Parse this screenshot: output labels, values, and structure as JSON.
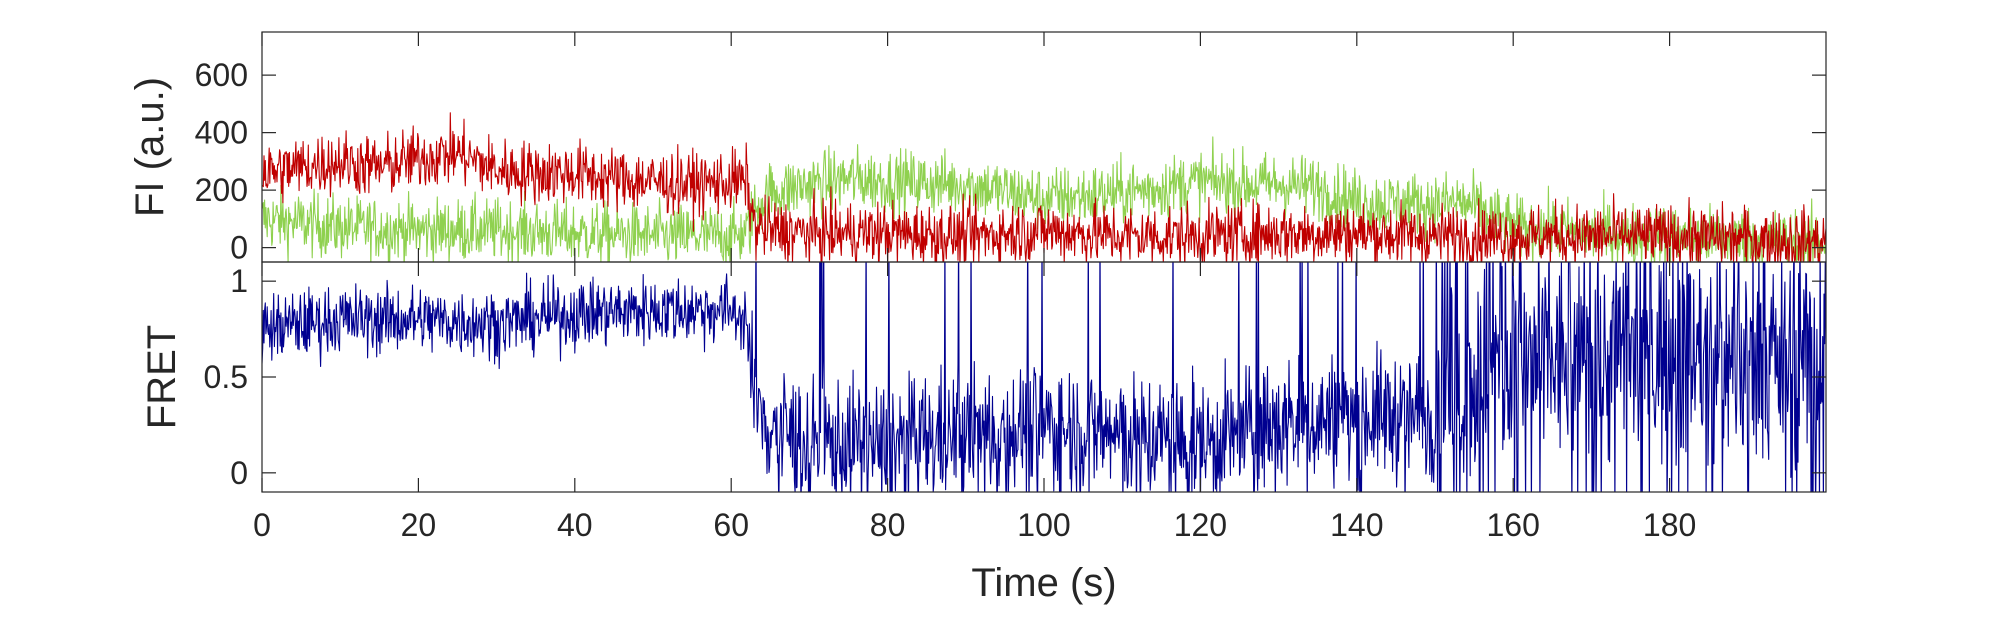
{
  "chart_data": [
    {
      "type": "line",
      "panel": "top",
      "ylabel": "FI (a.u.)",
      "xlabel": "",
      "xlim": [
        0,
        200
      ],
      "ylim": [
        -50,
        750
      ],
      "yticks": [
        0,
        200,
        400,
        600
      ],
      "ytick_labels": [
        "0",
        "200",
        "400",
        "600"
      ],
      "grid": false,
      "legend": "none",
      "series": [
        {
          "color": "#8fd14f",
          "x": [
            0,
            10,
            20,
            30,
            40,
            50,
            60,
            62,
            63,
            65,
            70,
            75,
            80,
            90,
            100,
            110,
            115,
            120,
            125,
            130,
            135,
            140,
            150,
            153,
            155,
            160,
            170,
            180,
            190,
            200
          ],
          "y": [
            100,
            70,
            60,
            60,
            50,
            40,
            40,
            50,
            130,
            190,
            220,
            240,
            230,
            220,
            170,
            190,
            210,
            230,
            220,
            220,
            210,
            160,
            150,
            160,
            140,
            70,
            50,
            40,
            30,
            20
          ]
        },
        {
          "color": "#c00000",
          "x": [
            0,
            5,
            10,
            15,
            20,
            25,
            30,
            35,
            40,
            45,
            50,
            55,
            60,
            62,
            63,
            65,
            70,
            80,
            90,
            100,
            110,
            120,
            130,
            140,
            150,
            160,
            170,
            180,
            190,
            200
          ],
          "y": [
            260,
            280,
            300,
            280,
            310,
            330,
            270,
            260,
            260,
            240,
            230,
            220,
            230,
            230,
            70,
            60,
            50,
            50,
            40,
            60,
            40,
            40,
            50,
            50,
            40,
            40,
            40,
            40,
            30,
            20
          ]
        }
      ]
    },
    {
      "type": "line",
      "panel": "bottom",
      "ylabel": "FRET",
      "xlabel": "Time (s)",
      "xlim": [
        0,
        200
      ],
      "ylim": [
        -0.1,
        1.1
      ],
      "yticks": [
        0,
        0.5,
        1
      ],
      "ytick_labels": [
        "0",
        "0.5",
        "1"
      ],
      "xticks": [
        0,
        20,
        40,
        60,
        80,
        100,
        120,
        140,
        160,
        180
      ],
      "xtick_labels": [
        "0",
        "20",
        "40",
        "60",
        "80",
        "100",
        "120",
        "140",
        "160",
        "180"
      ],
      "grid": false,
      "legend": "none",
      "series": [
        {
          "color": "#000090",
          "x": [
            0,
            10,
            20,
            30,
            40,
            50,
            60,
            62,
            63,
            65,
            70,
            80,
            90,
            100,
            110,
            120,
            130,
            140,
            150,
            155,
            160,
            170,
            180,
            190,
            200
          ],
          "y": [
            0.75,
            0.8,
            0.8,
            0.78,
            0.83,
            0.85,
            0.85,
            0.8,
            0.3,
            0.25,
            0.15,
            0.15,
            0.2,
            0.25,
            0.2,
            0.15,
            0.25,
            0.3,
            0.3,
            0.5,
            0.55,
            0.6,
            0.6,
            0.6,
            0.6
          ]
        }
      ]
    }
  ]
}
